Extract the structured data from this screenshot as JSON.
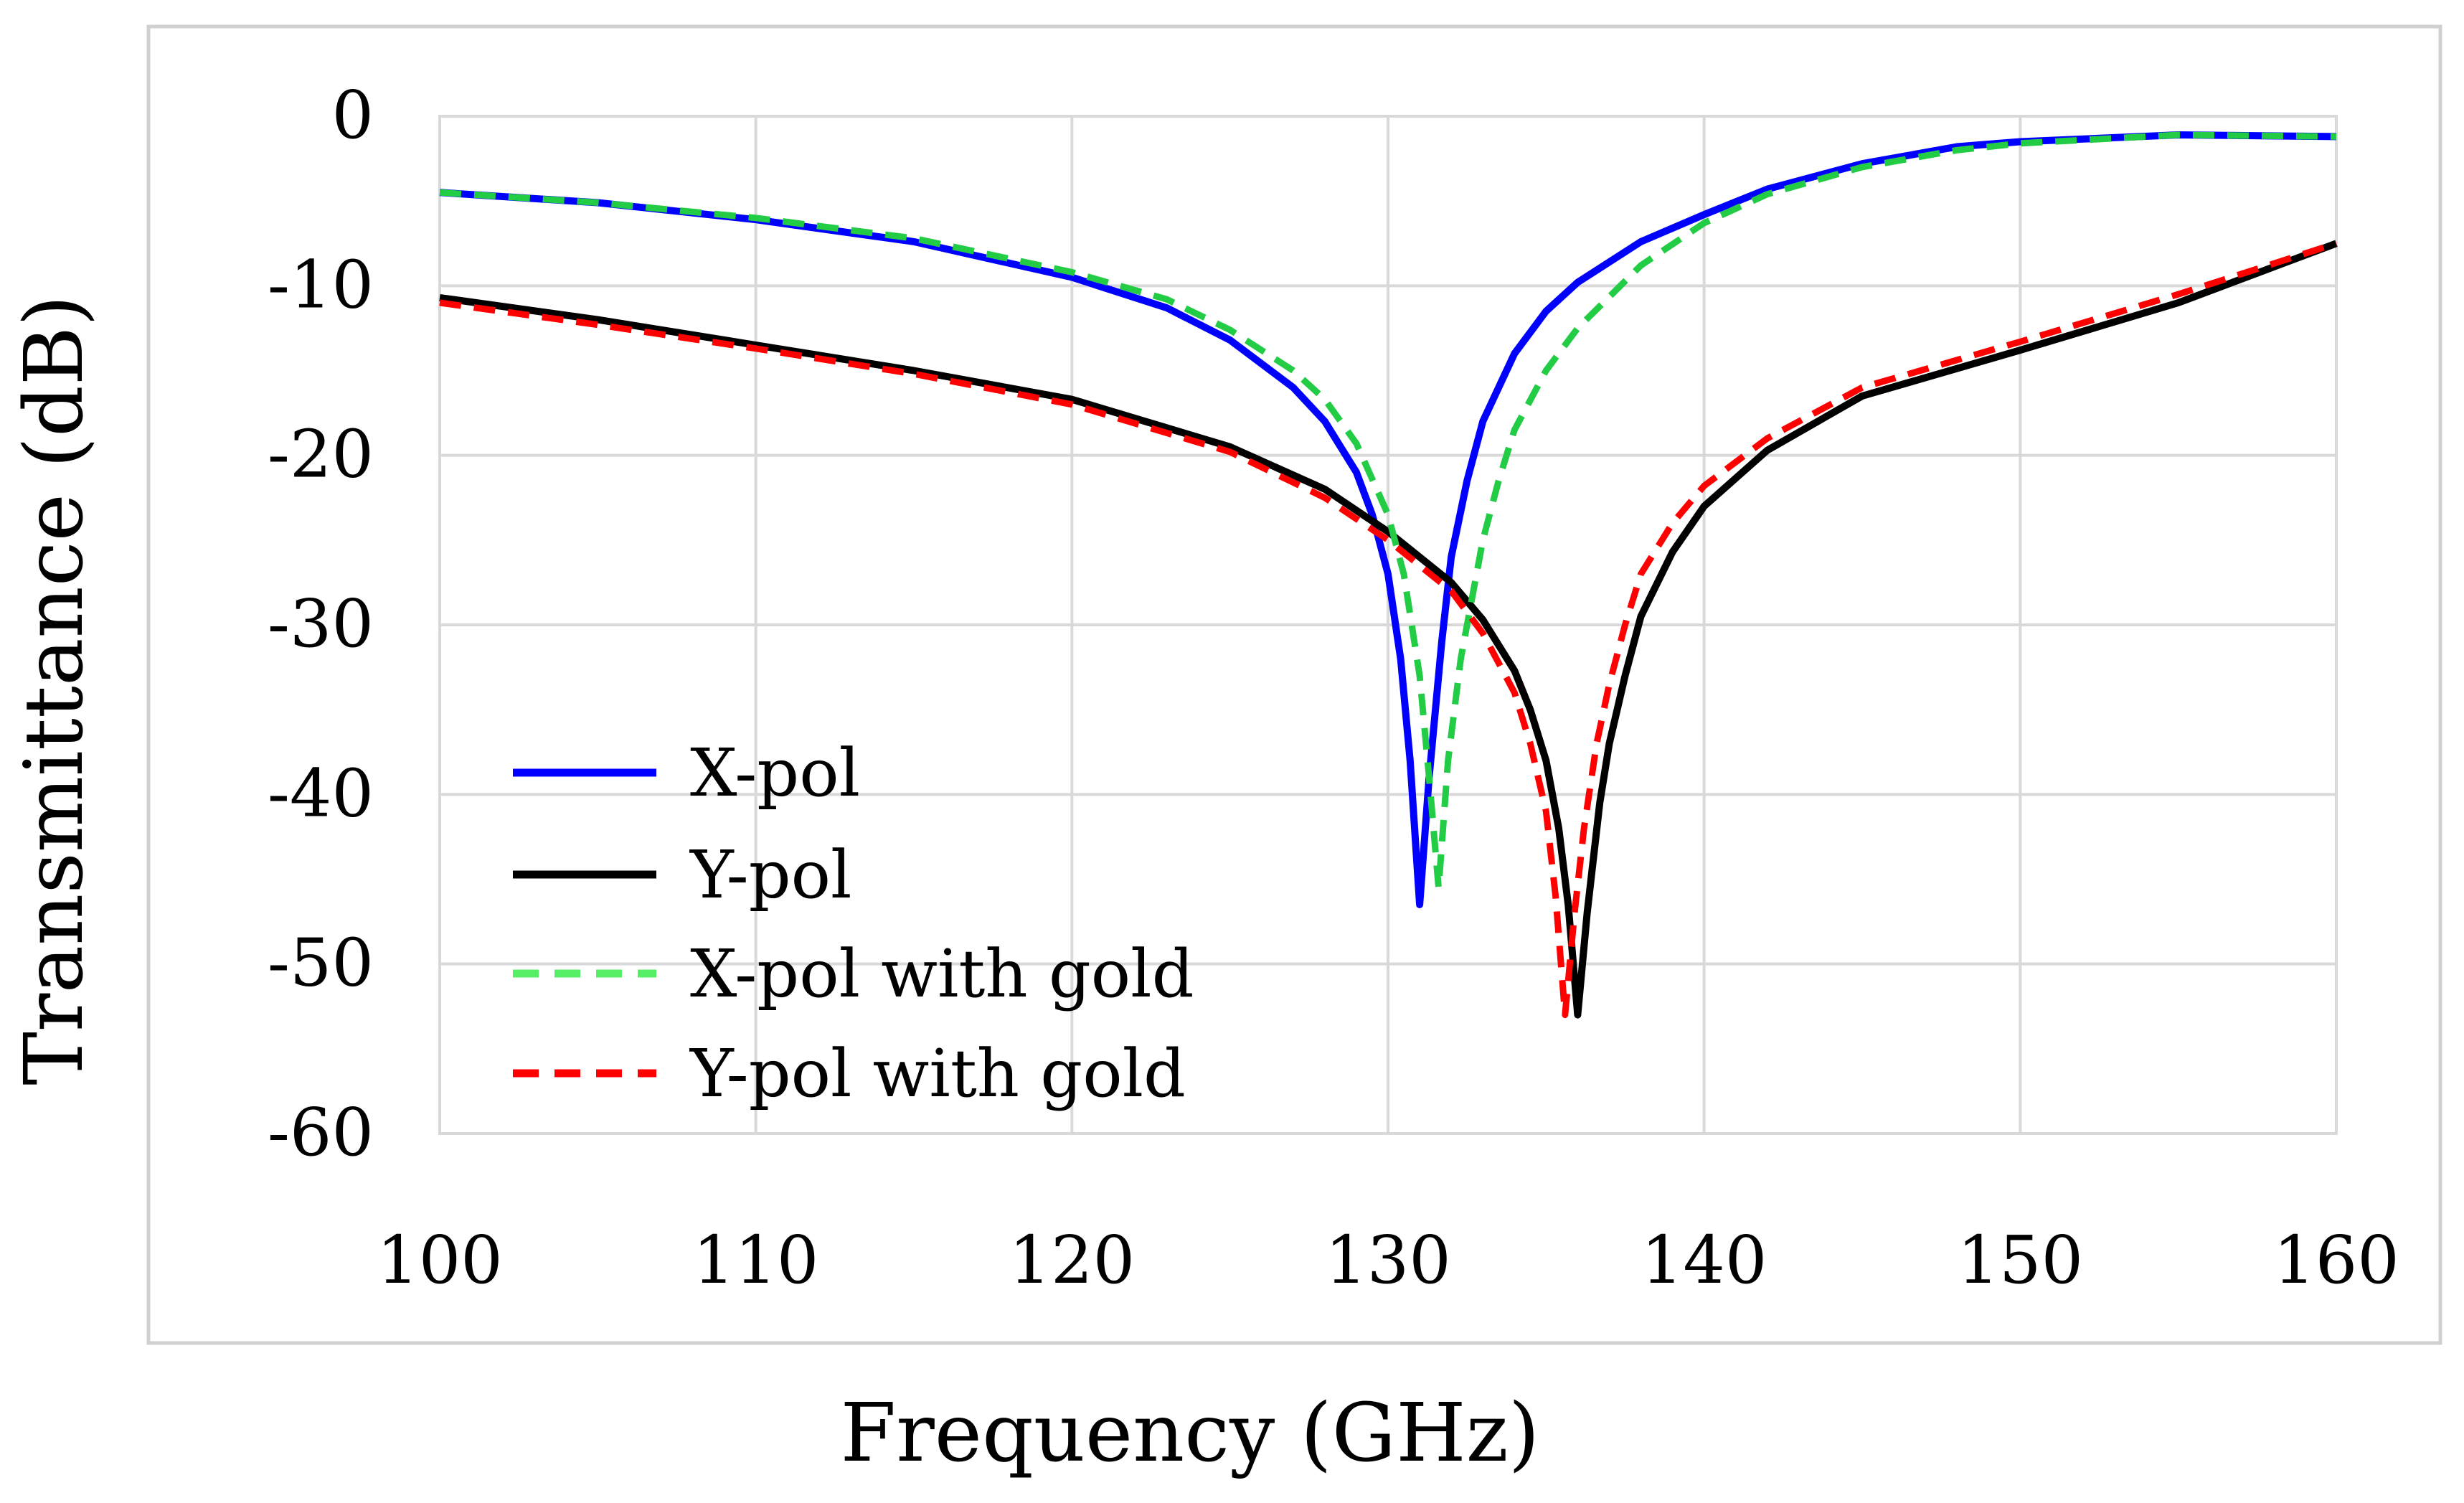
{
  "chart_data": {
    "type": "line",
    "title": "",
    "xlabel": "Frequency (GHz)",
    "ylabel": "Transmittance (dB)",
    "xlim": [
      100,
      160
    ],
    "ylim": [
      -60,
      0
    ],
    "xticks": [
      100,
      110,
      120,
      130,
      140,
      150,
      160
    ],
    "yticks": [
      0,
      -10,
      -20,
      -30,
      -40,
      -50,
      -60
    ],
    "grid": true,
    "legend_position": "bottom-left",
    "series": [
      {
        "name": "X-pol",
        "color": "#0000ff",
        "dash": "solid",
        "x": [
          100,
          105,
          110,
          115,
          120,
          123,
          125,
          127,
          128,
          129,
          129.5,
          130,
          130.4,
          130.7,
          131,
          131.3,
          131.7,
          132,
          132.5,
          133,
          134,
          135,
          136,
          138,
          140,
          142,
          145,
          148,
          150,
          155,
          160
        ],
        "y": [
          -4.5,
          -5.1,
          -6.1,
          -7.4,
          -9.5,
          -11.3,
          -13.2,
          -16.0,
          -18.0,
          -21.0,
          -23.5,
          -27.0,
          -32.0,
          -38.0,
          -46.5,
          -39.0,
          -31.0,
          -26.0,
          -21.5,
          -18.0,
          -14.0,
          -11.5,
          -9.8,
          -7.4,
          -5.8,
          -4.3,
          -2.8,
          -1.8,
          -1.5,
          -1.1,
          -1.2
        ]
      },
      {
        "name": "Y-pol",
        "color": "#000000",
        "dash": "solid",
        "x": [
          100,
          105,
          110,
          115,
          120,
          125,
          128,
          130,
          132,
          133,
          134,
          134.5,
          135,
          135.4,
          135.7,
          136,
          136.3,
          136.7,
          137,
          137.5,
          138,
          139,
          140,
          142,
          145,
          150,
          155,
          160
        ],
        "y": [
          -10.7,
          -12.0,
          -13.5,
          -15.0,
          -16.7,
          -19.5,
          -22.0,
          -24.5,
          -27.5,
          -29.7,
          -32.7,
          -35.0,
          -38.0,
          -42.0,
          -46.5,
          -53.0,
          -47.0,
          -40.5,
          -37.0,
          -33.0,
          -29.5,
          -25.7,
          -23.0,
          -19.7,
          -16.5,
          -13.8,
          -11.0,
          -7.5
        ]
      },
      {
        "name": "X-pol with gold",
        "color": "#22cc44",
        "dash": "dashed",
        "x": [
          100,
          105,
          110,
          115,
          120,
          123,
          125,
          127,
          128,
          129,
          130,
          130.5,
          131,
          131.3,
          131.6,
          131.9,
          132.3,
          132.7,
          133,
          133.5,
          134,
          135,
          136,
          138,
          140,
          142,
          145,
          148,
          150,
          155,
          160
        ],
        "y": [
          -4.5,
          -5.1,
          -6.0,
          -7.2,
          -9.2,
          -10.8,
          -12.6,
          -15.0,
          -16.7,
          -19.3,
          -23.5,
          -27.0,
          -33.0,
          -39.0,
          -45.5,
          -38.0,
          -32.0,
          -28.0,
          -25.0,
          -21.5,
          -18.5,
          -15.0,
          -12.5,
          -8.8,
          -6.3,
          -4.6,
          -3.0,
          -2.0,
          -1.6,
          -1.1,
          -1.2
        ]
      },
      {
        "name": "Y-pol with gold",
        "color": "#ff0000",
        "dash": "dashed",
        "x": [
          100,
          105,
          110,
          115,
          120,
          125,
          128,
          130,
          132,
          133,
          134,
          134.5,
          135,
          135.3,
          135.6,
          135.9,
          136.2,
          136.6,
          137,
          137.5,
          138,
          139,
          140,
          142,
          145,
          150,
          155,
          160
        ],
        "y": [
          -11.0,
          -12.3,
          -13.7,
          -15.2,
          -17.0,
          -19.8,
          -22.5,
          -25.0,
          -28.0,
          -30.5,
          -34.0,
          -37.0,
          -41.0,
          -46.0,
          -53.0,
          -47.0,
          -42.0,
          -37.0,
          -33.5,
          -30.0,
          -27.0,
          -24.0,
          -21.8,
          -19.0,
          -16.0,
          -13.3,
          -10.5,
          -7.5
        ]
      }
    ]
  }
}
